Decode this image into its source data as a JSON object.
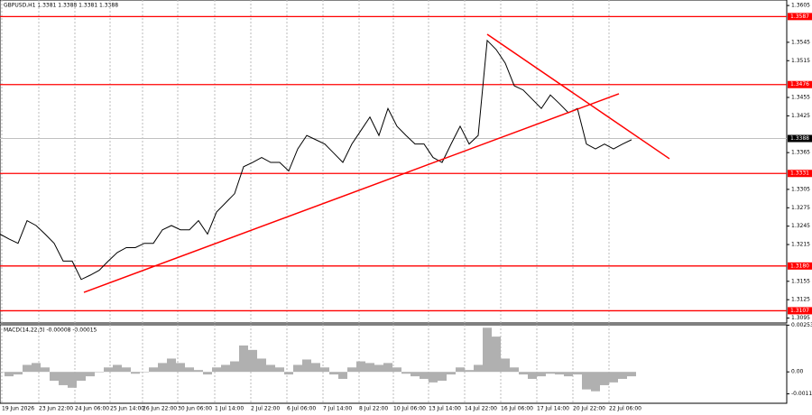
{
  "chart_data": {
    "type": "line",
    "title": "GBPUSD,H1  1.3381 1.3388 1.3381 1.3388",
    "xlim": [
      0,
      87.2
    ],
    "xticks": [
      {
        "value": 0.2,
        "label": "19 Jun 2026"
      },
      {
        "value": 4.3,
        "label": "23 Jun 22:00"
      },
      {
        "value": 8.3,
        "label": "24 Jun 06:00"
      },
      {
        "value": 12.2,
        "label": "25 Jun 14:00"
      },
      {
        "value": 15.8,
        "label": "26 Jun 22:00"
      },
      {
        "value": 19.7,
        "label": "30 Jun 06:00"
      },
      {
        "value": 23.8,
        "label": "1 Jul 14:00"
      },
      {
        "value": 27.8,
        "label": "2 Jul 22:00"
      },
      {
        "value": 31.8,
        "label": "6 Jul 06:00"
      },
      {
        "value": 35.8,
        "label": "7 Jul 14:00"
      },
      {
        "value": 39.8,
        "label": "8 Jul 22:00"
      },
      {
        "value": 43.6,
        "label": "10 Jul 06:00"
      },
      {
        "value": 47.5,
        "label": "13 Jul 14:00"
      },
      {
        "value": 51.5,
        "label": "14 Jul 22:00"
      },
      {
        "value": 55.5,
        "label": "16 Jul 06:00"
      },
      {
        "value": 59.5,
        "label": "17 Jul 14:00"
      },
      {
        "value": 63.5,
        "label": "20 Jul 22:00"
      },
      {
        "value": 67.5,
        "label": "22 Jul 06:00"
      }
    ],
    "ylim": [
      1.3087,
      1.3614
    ],
    "yticks": [
      1.3605,
      1.3545,
      1.3515,
      1.3455,
      1.3425,
      1.3365,
      1.3305,
      1.3275,
      1.3245,
      1.3215,
      1.3155,
      1.3125,
      1.3095
    ],
    "grid": true,
    "series": [
      {
        "name": "GBPUSD,H1",
        "color": "#000000",
        "values": [
          1.3232,
          1.3224,
          1.3217,
          1.3254,
          1.3246,
          1.3232,
          1.3217,
          1.3188,
          1.3188,
          1.3158,
          1.3165,
          1.3173,
          1.3188,
          1.3202,
          1.321,
          1.321,
          1.3217,
          1.3217,
          1.3239,
          1.3246,
          1.3239,
          1.3239,
          1.3254,
          1.3232,
          1.3268,
          1.3283,
          1.3298,
          1.3342,
          1.3349,
          1.3357,
          1.3349,
          1.3349,
          1.3335,
          1.3371,
          1.3393,
          1.3386,
          1.3379,
          1.3364,
          1.3349,
          1.3379,
          1.3401,
          1.3423,
          1.3393,
          1.3437,
          1.3408,
          1.3393,
          1.3379,
          1.3379,
          1.3357,
          1.3349,
          1.3379,
          1.3408,
          1.3379,
          1.3393,
          1.3548,
          1.3533,
          1.3511,
          1.3474,
          1.3467,
          1.3452,
          1.3437,
          1.3459,
          1.3445,
          1.343,
          1.3437,
          1.3379,
          1.3371,
          1.3379,
          1.3371,
          1.3379,
          1.3386
        ]
      }
    ],
    "current_price": 1.3388,
    "levels": [
      {
        "value": 1.3587,
        "color": "#ff0000"
      },
      {
        "value": 1.3476,
        "color": "#ff0000"
      },
      {
        "value": 1.3331,
        "color": "#ff0000"
      },
      {
        "value": 1.318,
        "label": "1.3180",
        "color": "#ff0000"
      },
      {
        "value": 1.3107,
        "color": "#ff0000"
      }
    ],
    "trendlines": [
      {
        "x": [
          9.3,
          68.6
        ],
        "y": [
          1.3137,
          1.3461
        ],
        "color": "#ff0000"
      },
      {
        "x": [
          54.0,
          74.2
        ],
        "y": [
          1.3558,
          1.3355
        ],
        "color": "#ff0000"
      }
    ],
    "macd": {
      "label": "MACD(14,22,3) -0.00008 -0.00015",
      "color": "#b0b0b0",
      "ylim": [
        -0.0017,
        0.00255
      ],
      "yticks": [
        0.00253,
        {
          "value": 0,
          "label": "0.00"
        },
        -0.00119
      ],
      "values": [
        0,
        -0.00024,
        -0.00014,
        0.00038,
        0.00048,
        0.00024,
        -0.00048,
        -0.00072,
        -0.00086,
        -0.00048,
        -0.00024,
        0,
        0.00024,
        0.00038,
        0.00024,
        -0.0001,
        0,
        0.00024,
        0.00048,
        0.00072,
        0.00048,
        0.00024,
        0.0001,
        -0.00014,
        0.00024,
        0.00038,
        0.00057,
        0.00143,
        0.00119,
        0.00072,
        0.00038,
        0.00024,
        -0.00014,
        0.00038,
        0.00067,
        0.00048,
        0.00024,
        -0.00014,
        -0.00038,
        0.00024,
        0.00057,
        0.00048,
        0.00038,
        0.00048,
        0.00024,
        -0.0001,
        -0.00024,
        -0.00038,
        -0.00057,
        -0.00048,
        -0.00014,
        0.00024,
        0.0001,
        0.00038,
        0.00239,
        0.00191,
        0.00072,
        0.00024,
        -0.00014,
        -0.00038,
        -0.00024,
        -0.0001,
        -0.00014,
        -0.00024,
        -0.00014,
        -0.00095,
        -0.00105,
        -0.00072,
        -0.00057,
        -0.00038,
        -0.00024
      ]
    }
  }
}
